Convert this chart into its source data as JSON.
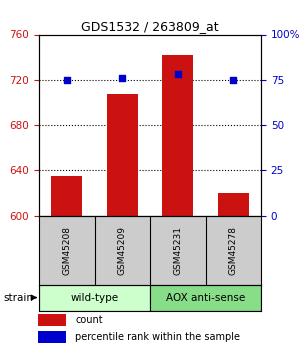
{
  "title": "GDS1532 / 263809_at",
  "samples": [
    "GSM45208",
    "GSM45209",
    "GSM45231",
    "GSM45278"
  ],
  "counts": [
    635,
    707,
    742,
    620
  ],
  "percentiles": [
    75,
    76,
    78,
    75
  ],
  "groups": [
    {
      "label": "wild-type",
      "samples": [
        0,
        1
      ],
      "color": "#ccffcc"
    },
    {
      "label": "AOX anti-sense",
      "samples": [
        2,
        3
      ],
      "color": "#88dd88"
    }
  ],
  "ylim_left": [
    600,
    760
  ],
  "ylim_right": [
    0,
    100
  ],
  "yticks_left": [
    600,
    640,
    680,
    720,
    760
  ],
  "yticks_right": [
    0,
    25,
    50,
    75,
    100
  ],
  "ytick_labels_right": [
    "0",
    "25",
    "50",
    "75",
    "100%"
  ],
  "bar_color": "#cc1111",
  "dot_color": "#0000cc",
  "sample_box_color": "#cccccc",
  "bar_width": 0.55,
  "strain_label": "strain",
  "legend_count_label": "count",
  "legend_pct_label": "percentile rank within the sample",
  "ax_label_color_left": "#cc1111",
  "ax_label_color_right": "#0000cc",
  "grid_ticks": [
    640,
    680,
    720
  ]
}
